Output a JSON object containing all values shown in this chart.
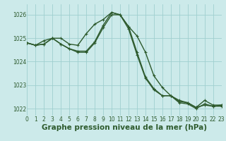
{
  "series": [
    {
      "x": [
        0,
        1,
        2,
        3,
        4,
        5,
        6,
        7,
        8,
        9,
        10,
        11,
        12,
        13,
        14,
        15,
        16,
        17,
        18,
        19,
        20,
        21,
        22,
        23
      ],
      "y": [
        1024.8,
        1024.7,
        1024.9,
        1025.0,
        1025.0,
        1024.75,
        1024.7,
        1025.2,
        1025.6,
        1025.8,
        1026.1,
        1026.0,
        1025.5,
        1025.1,
        1024.4,
        1023.4,
        1022.9,
        1022.55,
        1022.35,
        1022.25,
        1022.05,
        1022.35,
        1022.15,
        1022.15
      ]
    },
    {
      "x": [
        0,
        1,
        2,
        3,
        4,
        5,
        6,
        7,
        8,
        9,
        10,
        11,
        12,
        13,
        14,
        15,
        16,
        17,
        18,
        19,
        20,
        21,
        22,
        23
      ],
      "y": [
        1024.8,
        1024.7,
        1024.75,
        1025.0,
        1024.75,
        1024.55,
        1024.45,
        1024.45,
        1024.85,
        1025.55,
        1026.1,
        1026.0,
        1025.5,
        1024.4,
        1023.35,
        1022.85,
        1022.55,
        1022.55,
        1022.3,
        1022.25,
        1022.05,
        1022.15,
        1022.1,
        1022.15
      ]
    },
    {
      "x": [
        0,
        1,
        2,
        3,
        4,
        5,
        6,
        7,
        8,
        9,
        10,
        11,
        12,
        13,
        14,
        15,
        16,
        17,
        18,
        19,
        20,
        21,
        22,
        23
      ],
      "y": [
        1024.8,
        1024.7,
        1024.75,
        1025.0,
        1024.75,
        1024.55,
        1024.4,
        1024.4,
        1024.8,
        1025.45,
        1026.0,
        1026.0,
        1025.4,
        1024.3,
        1023.3,
        1022.8,
        1022.55,
        1022.55,
        1022.25,
        1022.2,
        1022.0,
        1022.2,
        1022.1,
        1022.1
      ]
    }
  ],
  "xlim": [
    0,
    23
  ],
  "ylim": [
    1021.7,
    1026.45
  ],
  "yticks": [
    1022,
    1023,
    1024,
    1025,
    1026
  ],
  "xticks": [
    0,
    1,
    2,
    3,
    4,
    5,
    6,
    7,
    8,
    9,
    10,
    11,
    12,
    13,
    14,
    15,
    16,
    17,
    18,
    19,
    20,
    21,
    22,
    23
  ],
  "xlabel": "Graphe pression niveau de la mer (hPa)",
  "bg_color": "#cceaea",
  "grid_color": "#9fcfcf",
  "line_color": "#2d5a2d",
  "label_color": "#2d5a2d",
  "tick_fontsize": 5.5,
  "xlabel_fontsize": 7.5,
  "linewidth": 1.0,
  "markersize": 3.0
}
